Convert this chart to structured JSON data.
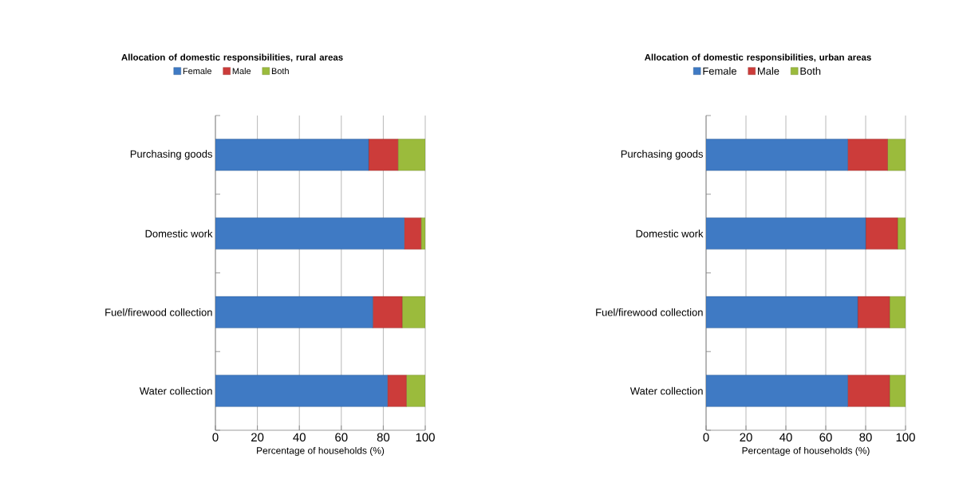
{
  "chart_data": [
    {
      "type": "bar",
      "orientation": "horizontal",
      "stacked": true,
      "title": "Allocation of domestic responsibilities, rural areas",
      "xlabel": "Percentage of households (%)",
      "categories": [
        "Purchasing goods",
        "Domestic work",
        "Fuel/firewood collection",
        "Water collection"
      ],
      "series": [
        {
          "name": "Female",
          "color": "#3f7ac4",
          "values": [
            73,
            90,
            75,
            82
          ]
        },
        {
          "name": "Male",
          "color": "#cc3c3a",
          "values": [
            14,
            8,
            14,
            9
          ]
        },
        {
          "name": "Both",
          "color": "#9bbb3c",
          "values": [
            13,
            2,
            11,
            9
          ]
        }
      ],
      "xlim": [
        0,
        100
      ],
      "xticks": [
        0,
        20,
        40,
        60,
        80,
        100
      ],
      "grid": "x",
      "legend": "top"
    },
    {
      "type": "bar",
      "orientation": "horizontal",
      "stacked": true,
      "title": "Allocation of domestic responsibilities, urban areas",
      "xlabel": "Percentage of households (%)",
      "categories": [
        "Purchasing goods",
        "Domestic work",
        "Fuel/firewood collection",
        "Water collection"
      ],
      "series": [
        {
          "name": "Female",
          "color": "#3f7ac4",
          "values": [
            71,
            80,
            76,
            71
          ]
        },
        {
          "name": "Male",
          "color": "#cc3c3a",
          "values": [
            20,
            16,
            16,
            21
          ]
        },
        {
          "name": "Both",
          "color": "#9bbb3c",
          "values": [
            9,
            4,
            8,
            8
          ]
        }
      ],
      "xlim": [
        0,
        100
      ],
      "xticks": [
        0,
        20,
        40,
        60,
        80,
        100
      ],
      "grid": "x",
      "legend": "top"
    }
  ]
}
